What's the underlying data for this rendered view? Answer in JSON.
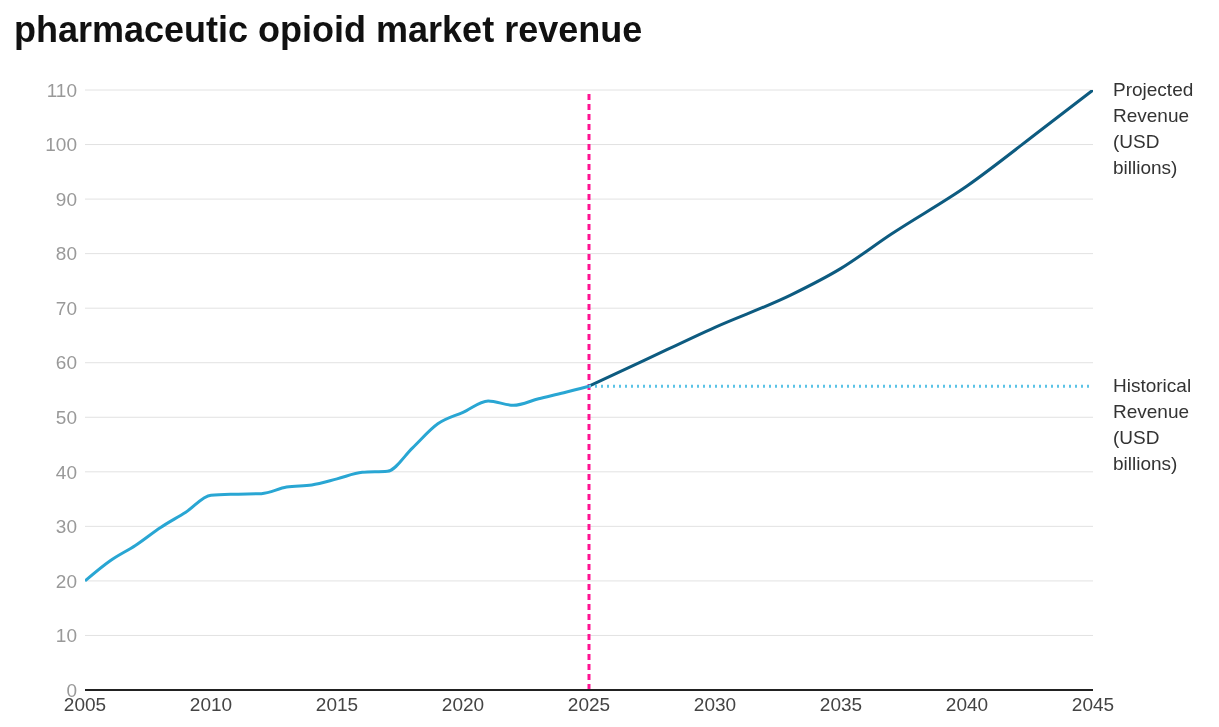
{
  "chart_data": {
    "type": "line",
    "title": "pharmaceutic opioid market revenue",
    "xlim": [
      2005,
      2045
    ],
    "xticks": [
      2005,
      2010,
      2015,
      2020,
      2025,
      2030,
      2035,
      2040,
      2045
    ],
    "ylim": [
      0,
      110
    ],
    "yticks": [
      0,
      10,
      20,
      30,
      40,
      50,
      60,
      70,
      80,
      90,
      100,
      110
    ],
    "grid": "y",
    "legend": false,
    "marker": "none",
    "series": [
      {
        "name": "Projected Revenue (USD billions)",
        "color": "#0d5b80",
        "line_style": "solid",
        "x": [
          2025,
          2027,
          2030,
          2033,
          2035,
          2037,
          2040,
          2043,
          2045
        ],
        "values": [
          55.7,
          60,
          66.5,
          72.4,
          77.3,
          83.6,
          92.4,
          102.9,
          110
        ]
      },
      {
        "name": "Historical Revenue (USD billions)",
        "color": "#29a6d3",
        "line_style": "solid",
        "x": [
          2005,
          2006,
          2007,
          2008,
          2009,
          2010,
          2011,
          2012,
          2013,
          2014,
          2015,
          2016,
          2017,
          2018,
          2019,
          2020,
          2021,
          2022,
          2023,
          2024,
          2025
        ],
        "values": [
          20,
          23.7,
          26.5,
          29.8,
          32.6,
          35.7,
          35.9,
          36,
          37.2,
          37.6,
          38.7,
          39.9,
          40.1,
          44.4,
          48.8,
          50.9,
          53,
          52.2,
          53.4,
          54.5,
          55.7
        ]
      },
      {
        "color": "#5cc3e6",
        "line_style": "dotted",
        "x": [
          2025,
          2045
        ],
        "values": [
          55.7,
          55.7
        ]
      }
    ],
    "ref_lines": [
      {
        "axis": "x",
        "value": 2025,
        "label": null,
        "color": "#ff1493",
        "line_style": "dashed"
      }
    ]
  }
}
